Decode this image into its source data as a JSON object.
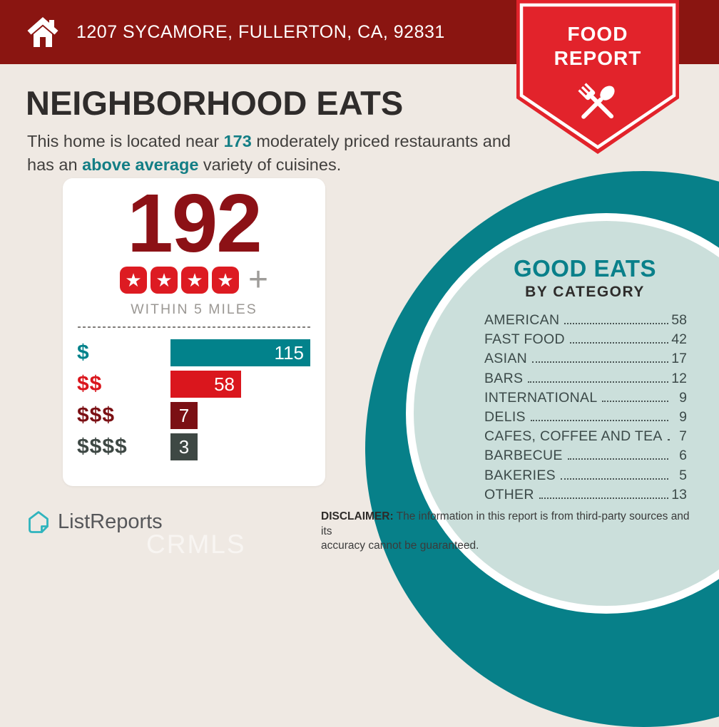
{
  "header": {
    "address": "1207 SYCAMORE, FULLERTON, CA, 92831"
  },
  "ribbon": {
    "line1": "FOOD",
    "line2": "REPORT"
  },
  "page": {
    "title": "NEIGHBORHOOD EATS"
  },
  "intro": {
    "line1_pre": "This home is located near ",
    "count": "173",
    "line1_post": " moderately priced restaurants and",
    "line2_pre": "has an ",
    "highlight": "above average",
    "line2_post": " variety of cuisines."
  },
  "stats_card": {
    "total": "192",
    "star_count": 4,
    "plus": "+",
    "radius_label": "WITHIN 5 MILES",
    "max_value": 115,
    "price_bars": [
      {
        "label": "$",
        "value": 115,
        "color": "#02828B"
      },
      {
        "label": "$$",
        "value": 58,
        "color": "#DA161D"
      },
      {
        "label": "$$$",
        "value": 7,
        "color": "#7B1014"
      },
      {
        "label": "$$$$",
        "value": 3,
        "color": "#3E4844"
      }
    ]
  },
  "good_eats": {
    "title": "GOOD EATS",
    "subtitle": "BY CATEGORY",
    "categories": [
      {
        "label": "AMERICAN",
        "value": 58
      },
      {
        "label": "FAST FOOD",
        "value": 42
      },
      {
        "label": "ASIAN",
        "value": 17
      },
      {
        "label": "BARS",
        "value": 12
      },
      {
        "label": "INTERNATIONAL",
        "value": 9
      },
      {
        "label": "DELIS",
        "value": 9
      },
      {
        "label": "CAFES, COFFEE AND TEA",
        "value": 7
      },
      {
        "label": "BARBECUE",
        "value": 6
      },
      {
        "label": "BAKERIES",
        "value": 5
      },
      {
        "label": "OTHER",
        "value": 13
      }
    ]
  },
  "footer": {
    "brand": "ListReports",
    "disclaimer_label": "DISCLAIMER:",
    "disclaimer_line1": " The information in this report is from third-party sources and its",
    "disclaimer_line2": "accuracy cannot be guaranteed.",
    "watermark": "CRMLS"
  },
  "chart_data": [
    {
      "type": "bar",
      "orientation": "horizontal",
      "title": "192 restaurants rated 4+ stars within 5 miles",
      "categories": [
        "$",
        "$$",
        "$$$",
        "$$$$"
      ],
      "values": [
        115,
        58,
        7,
        3
      ],
      "colors": [
        "#02828B",
        "#DA161D",
        "#7B1014",
        "#3E4844"
      ],
      "xlim": [
        0,
        115
      ],
      "grid": false,
      "value_labels": "inside-end",
      "legend": "none"
    },
    {
      "type": "table",
      "title": "GOOD EATS BY CATEGORY",
      "categories": [
        "AMERICAN",
        "FAST FOOD",
        "ASIAN",
        "BARS",
        "INTERNATIONAL",
        "DELIS",
        "CAFES, COFFEE AND TEA",
        "BARBECUE",
        "BAKERIES",
        "OTHER"
      ],
      "values": [
        58,
        42,
        17,
        12,
        9,
        9,
        7,
        6,
        5,
        13
      ]
    }
  ]
}
